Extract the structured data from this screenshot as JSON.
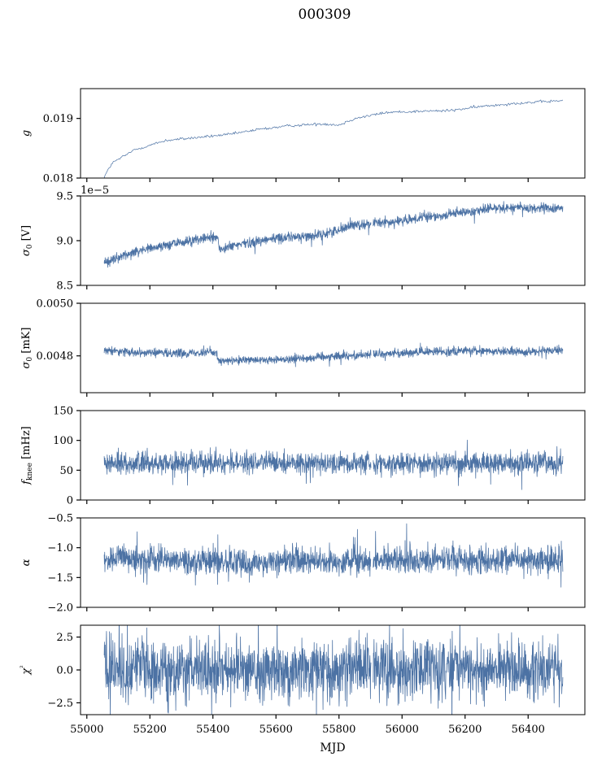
{
  "chart_data": {
    "type": "line",
    "title": "000309",
    "xlabel": "MJD",
    "xlim": [
      54980,
      56580
    ],
    "xticks": [
      55000,
      55200,
      55400,
      55600,
      55800,
      56000,
      56200,
      56400
    ],
    "xtick_labels": [
      "55000",
      "55200",
      "55400",
      "55600",
      "55800",
      "56000",
      "56200",
      "56400"
    ],
    "data_range": [
      55055,
      56510
    ],
    "gap_at": 55905,
    "line_color": "#4c72a4",
    "panels": [
      {
        "id": "g",
        "ylabel_main": "g",
        "ylabel_sub": "",
        "ylabel_rest": "",
        "ylim": [
          0.018,
          0.0195
        ],
        "yticks": [
          0.018,
          0.019
        ],
        "ytick_labels": [
          "0.018",
          "0.019"
        ],
        "offset_text": "",
        "series_style": "trend",
        "trend": [
          [
            55055,
            0.01802
          ],
          [
            55080,
            0.01825
          ],
          [
            55150,
            0.01847
          ],
          [
            55250,
            0.01863
          ],
          [
            55350,
            0.01868
          ],
          [
            55450,
            0.01873
          ],
          [
            55550,
            0.01882
          ],
          [
            55650,
            0.01888
          ],
          [
            55750,
            0.01891
          ],
          [
            55800,
            0.01889
          ],
          [
            55850,
            0.019
          ],
          [
            55950,
            0.0191
          ],
          [
            56050,
            0.01912
          ],
          [
            56150,
            0.01913
          ],
          [
            56250,
            0.0192
          ],
          [
            56350,
            0.01925
          ],
          [
            56510,
            0.0193
          ]
        ],
        "noise": 1.2e-05
      },
      {
        "id": "sigma0_V",
        "ylabel_main": "σ",
        "ylabel_sub": "0",
        "ylabel_rest": " [V]",
        "ylim": [
          8.5,
          9.5
        ],
        "yticks": [
          8.5,
          9.0,
          9.5
        ],
        "ytick_labels": [
          "8.5",
          "9.0",
          "9.5"
        ],
        "offset_text": "1e−5",
        "series_style": "band",
        "trend": [
          [
            55055,
            8.75
          ],
          [
            55150,
            8.88
          ],
          [
            55250,
            8.95
          ],
          [
            55300,
            8.98
          ],
          [
            55415,
            9.05
          ],
          [
            55420,
            8.9
          ],
          [
            55500,
            8.97
          ],
          [
            55600,
            9.03
          ],
          [
            55700,
            9.05
          ],
          [
            55750,
            9.07
          ],
          [
            55850,
            9.18
          ],
          [
            56000,
            9.22
          ],
          [
            56200,
            9.32
          ],
          [
            56300,
            9.37
          ],
          [
            56510,
            9.36
          ]
        ],
        "amplitude": 0.05
      },
      {
        "id": "sigma0_mK",
        "ylabel_main": "σ",
        "ylabel_sub": "0",
        "ylabel_rest": " [mK]",
        "ylim": [
          0.00466,
          0.005
        ],
        "yticks": [
          0.0048,
          0.005
        ],
        "ytick_labels": [
          "0.0048",
          "0.0050"
        ],
        "offset_text": "",
        "series_style": "band",
        "trend": [
          [
            55055,
            0.00482
          ],
          [
            55250,
            0.00481
          ],
          [
            55410,
            0.004815
          ],
          [
            55420,
            0.00478
          ],
          [
            55600,
            0.004785
          ],
          [
            55800,
            0.0048
          ],
          [
            56000,
            0.00481
          ],
          [
            56200,
            0.00482
          ],
          [
            56400,
            0.004815
          ],
          [
            56510,
            0.00482
          ]
        ],
        "amplitude": 1.4e-05
      },
      {
        "id": "fknee",
        "ylabel_main": "f",
        "ylabel_sub": "knee",
        "ylabel_rest": " [mHz]",
        "ylim": [
          0,
          150
        ],
        "yticks": [
          0,
          50,
          100,
          150
        ],
        "ytick_labels": [
          "0",
          "50",
          "100",
          "150"
        ],
        "offset_text": "",
        "series_style": "band",
        "trend": [
          [
            55055,
            62
          ],
          [
            56510,
            62
          ]
        ],
        "amplitude": 16
      },
      {
        "id": "alpha",
        "ylabel_main": "α",
        "ylabel_sub": "",
        "ylabel_rest": "",
        "ylim": [
          -2.0,
          -0.5
        ],
        "yticks": [
          -2.0,
          -1.5,
          -1.0,
          -0.5
        ],
        "ytick_labels": [
          "−2.0",
          "−1.5",
          "−1.0",
          "−0.5"
        ],
        "offset_text": "",
        "series_style": "band",
        "trend": [
          [
            55055,
            -1.18
          ],
          [
            55500,
            -1.25
          ],
          [
            56000,
            -1.2
          ],
          [
            56510,
            -1.2
          ]
        ],
        "amplitude": 0.2
      },
      {
        "id": "chi2",
        "ylabel_main": "χ",
        "ylabel_sub": "",
        "ylabel_rest": "²",
        "ylim": [
          -3.4,
          3.4
        ],
        "yticks": [
          -2.5,
          0.0,
          2.5
        ],
        "ytick_labels": [
          "−2.5",
          "0.0",
          "2.5"
        ],
        "offset_text": "",
        "series_style": "band",
        "trend": [
          [
            55055,
            0.0
          ],
          [
            56510,
            0.0
          ]
        ],
        "amplitude": 2.0
      }
    ]
  }
}
